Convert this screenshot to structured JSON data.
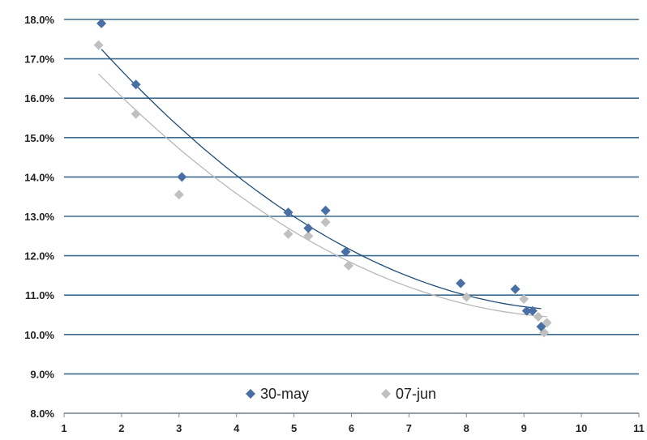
{
  "chart_data": {
    "type": "scatter",
    "title": "",
    "xlabel": "",
    "ylabel": "",
    "xlim": [
      1,
      11
    ],
    "ylim": [
      0.08,
      0.18
    ],
    "x_ticks": [
      "1",
      "2",
      "3",
      "4",
      "5",
      "6",
      "7",
      "8",
      "9",
      "10",
      "11"
    ],
    "y_ticks": [
      "8.0%",
      "9.0%",
      "10.0%",
      "11.0%",
      "12.0%",
      "13.0%",
      "14.0%",
      "15.0%",
      "16.0%",
      "17.0%",
      "18.0%"
    ],
    "grid": "horizontal",
    "legend_position": "bottom-center",
    "trendline": "polynomial",
    "series": [
      {
        "name": "30-may",
        "color": "#4a6fa5",
        "trend_color": "#1f4e79",
        "marker": "diamond",
        "x": [
          1.65,
          2.25,
          3.05,
          4.9,
          5.25,
          5.55,
          5.9,
          7.9,
          8.85,
          9.05,
          9.15,
          9.3
        ],
        "y": [
          0.179,
          0.1635,
          0.14,
          0.131,
          0.127,
          0.1315,
          0.121,
          0.113,
          0.1115,
          0.106,
          0.106,
          0.102
        ]
      },
      {
        "name": "07-jun",
        "color": "#c0c0c0",
        "trend_color": "#b8b8b8",
        "marker": "diamond",
        "x": [
          1.6,
          2.25,
          3.0,
          4.9,
          5.25,
          5.55,
          5.95,
          8.0,
          9.0,
          9.25,
          9.35,
          9.4
        ],
        "y": [
          0.1735,
          0.156,
          0.1355,
          0.1255,
          0.125,
          0.1285,
          0.1175,
          0.1095,
          0.109,
          0.1045,
          0.1005,
          0.103
        ]
      }
    ]
  }
}
